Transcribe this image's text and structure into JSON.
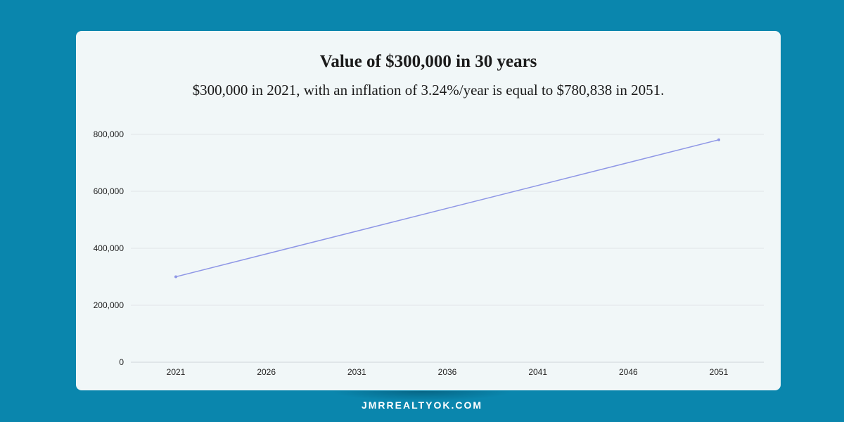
{
  "chart_data": {
    "type": "line",
    "title": "Value of $300,000 in 30 years",
    "subtitle": "$300,000 in 2021, with an inflation of 3.24%/year is equal to $780,838 in 2051.",
    "x": [
      2021,
      2051
    ],
    "values": [
      300000,
      780838
    ],
    "x_ticks": [
      "2021",
      "2026",
      "2031",
      "2036",
      "2041",
      "2046",
      "2051"
    ],
    "y_ticks": [
      "0",
      "200,000",
      "400,000",
      "600,000",
      "800,000"
    ],
    "ylim": [
      0,
      800000
    ],
    "grid": true,
    "line_color": "#8f97e6"
  },
  "footer": {
    "text": "JMRREALTYOK.COM"
  },
  "colors": {
    "background": "#0a86ad",
    "card": "#f1f7f8"
  }
}
